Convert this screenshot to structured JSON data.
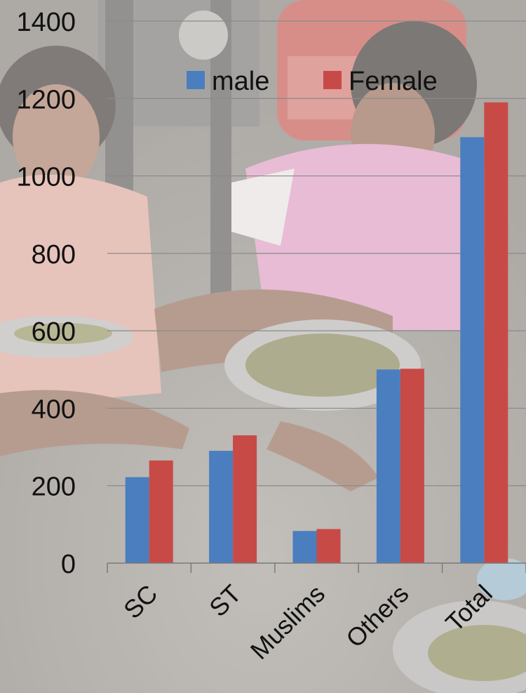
{
  "colors": {
    "male": "#4a7ebf",
    "female": "#c84a47",
    "gridline": "#8a8a8a",
    "axis": "#7a7a7a",
    "background_wash": "#e8e6e4"
  },
  "chart_data": {
    "type": "bar",
    "categories": [
      "SC",
      "ST",
      "Muslims",
      "Others",
      "Total"
    ],
    "series": [
      {
        "name": "male",
        "values": [
          222,
          290,
          83,
          500,
          1100
        ]
      },
      {
        "name": "Female",
        "values": [
          265,
          330,
          88,
          502,
          1190
        ]
      }
    ],
    "yticks": [
      "0",
      "200",
      "400",
      "600",
      "800",
      "1000",
      "1200",
      "1400"
    ],
    "ylim": [
      0,
      1400
    ],
    "grid": true,
    "legend_position": "top",
    "category_label_rotation": "-45deg",
    "background": "faded photograph of children sorting green gram on steel plates"
  }
}
